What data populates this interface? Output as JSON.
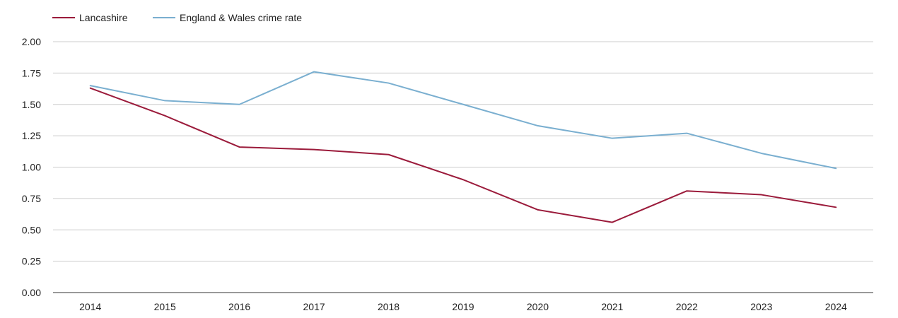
{
  "chart_data": {
    "type": "line",
    "title": "",
    "xlabel": "",
    "ylabel": "",
    "ylim": [
      0,
      2
    ],
    "yticks": [
      "0.00",
      "0.25",
      "0.50",
      "0.75",
      "1.00",
      "1.25",
      "1.50",
      "1.75",
      "2.00"
    ],
    "grid": true,
    "legend_position": "top-left",
    "categories": [
      "2014",
      "2015",
      "2016",
      "2017",
      "2018",
      "2019",
      "2020",
      "2021",
      "2022",
      "2023",
      "2024"
    ],
    "series": [
      {
        "name": "Lancashire",
        "color": "#9b1b3b",
        "values": [
          1.63,
          1.41,
          1.16,
          1.14,
          1.1,
          0.9,
          0.66,
          0.56,
          0.81,
          0.78,
          0.68
        ]
      },
      {
        "name": "England & Wales crime rate",
        "color": "#7aafd0",
        "values": [
          1.65,
          1.53,
          1.5,
          1.76,
          1.67,
          1.5,
          1.33,
          1.23,
          1.27,
          1.11,
          0.99
        ]
      }
    ]
  }
}
